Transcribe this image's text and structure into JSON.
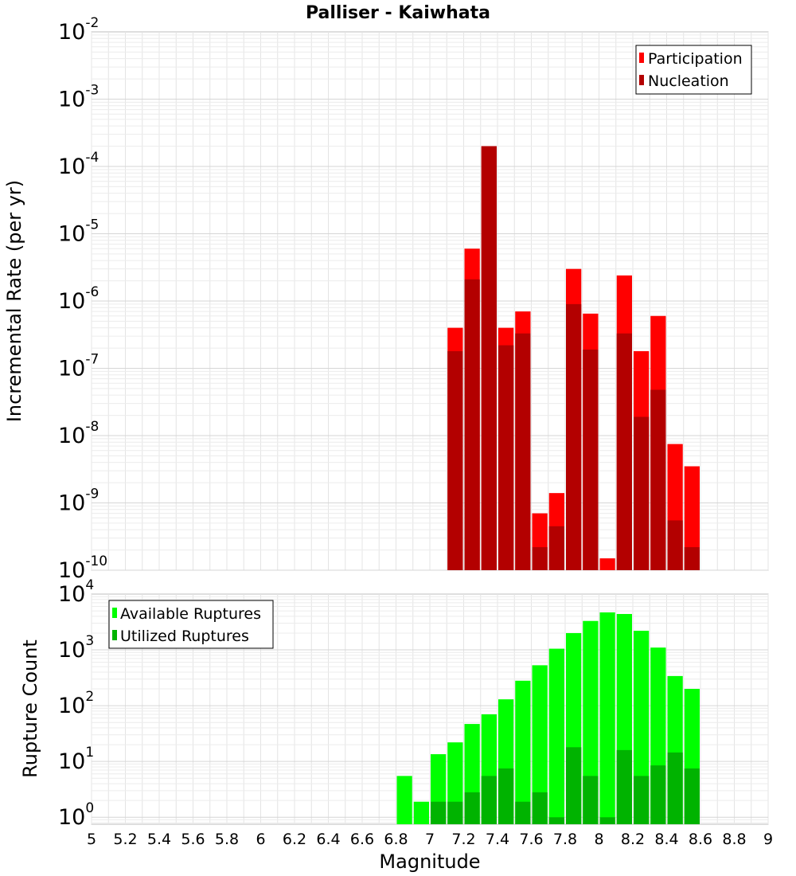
{
  "title": "Palliser - Kaiwhata",
  "colors": {
    "participation": "#ff0000",
    "nucleation": "#b30000",
    "available": "#00ff00",
    "utilized": "#00b300",
    "grid": "#e4e4e4",
    "frame": "#bdbdbd"
  },
  "chart_data": [
    {
      "type": "bar",
      "title": "Palliser - Kaiwhata",
      "xlabel": "",
      "ylabel": "Incremental Rate (per yr)",
      "xlim": [
        5,
        9
      ],
      "ylim": [
        1e-10,
        0.01
      ],
      "yscale": "log",
      "ytick_exponents": [
        "-2",
        "-3",
        "-4",
        "-5",
        "-6",
        "-7",
        "-8",
        "-9",
        "-10"
      ],
      "grid": true,
      "legend_position": "top-right",
      "bar_width": 0.1,
      "series": [
        {
          "name": "Participation",
          "color_key": "participation",
          "points": [
            {
              "x": 7.15,
              "y": 4e-07
            },
            {
              "x": 7.25,
              "y": 6e-06
            },
            {
              "x": 7.35,
              "y": 0.0002
            },
            {
              "x": 7.45,
              "y": 4e-07
            },
            {
              "x": 7.55,
              "y": 7e-07
            },
            {
              "x": 7.65,
              "y": 7e-10
            },
            {
              "x": 7.75,
              "y": 1.4e-09
            },
            {
              "x": 7.85,
              "y": 3e-06
            },
            {
              "x": 7.95,
              "y": 6.5e-07
            },
            {
              "x": 8.05,
              "y": 1.5e-10
            },
            {
              "x": 8.15,
              "y": 2.4e-06
            },
            {
              "x": 8.25,
              "y": 1.8e-07
            },
            {
              "x": 8.35,
              "y": 6e-07
            },
            {
              "x": 8.45,
              "y": 7.5e-09
            },
            {
              "x": 8.55,
              "y": 3.5e-09
            }
          ]
        },
        {
          "name": "Nucleation",
          "color_key": "nucleation",
          "points": [
            {
              "x": 7.15,
              "y": 1.8e-07
            },
            {
              "x": 7.25,
              "y": 2.1e-06
            },
            {
              "x": 7.35,
              "y": 0.0002
            },
            {
              "x": 7.45,
              "y": 2.2e-07
            },
            {
              "x": 7.55,
              "y": 3.3e-07
            },
            {
              "x": 7.65,
              "y": 2.2e-10
            },
            {
              "x": 7.75,
              "y": 4.5e-10
            },
            {
              "x": 7.85,
              "y": 9e-07
            },
            {
              "x": 7.95,
              "y": 1.9e-07
            },
            {
              "x": 8.15,
              "y": 3.3e-07
            },
            {
              "x": 8.25,
              "y": 1.9e-08
            },
            {
              "x": 8.35,
              "y": 4.8e-08
            },
            {
              "x": 8.45,
              "y": 5.5e-10
            },
            {
              "x": 8.55,
              "y": 2.2e-10
            }
          ]
        }
      ]
    },
    {
      "type": "bar",
      "title": "",
      "xlabel": "Magnitude",
      "ylabel": "Rupture Count",
      "xlim": [
        5,
        9
      ],
      "ylim": [
        0.75,
        10000
      ],
      "yscale": "log",
      "ytick_exponents": [
        "0",
        "1",
        "2",
        "3",
        "4"
      ],
      "xticks": [
        "5",
        "5.2",
        "5.4",
        "5.6",
        "5.8",
        "6",
        "6.2",
        "6.4",
        "6.6",
        "6.8",
        "7",
        "7.2",
        "7.4",
        "7.6",
        "7.8",
        "8",
        "8.2",
        "8.4",
        "8.6",
        "8.8",
        "9"
      ],
      "grid": true,
      "legend_position": "top-left",
      "bar_width": 0.1,
      "series": [
        {
          "name": "Available Ruptures",
          "color_key": "available",
          "points": [
            {
              "x": 6.85,
              "y": 5.5
            },
            {
              "x": 6.95,
              "y": 1.9
            },
            {
              "x": 7.05,
              "y": 13.5
            },
            {
              "x": 7.15,
              "y": 22
            },
            {
              "x": 7.25,
              "y": 47
            },
            {
              "x": 7.35,
              "y": 70
            },
            {
              "x": 7.45,
              "y": 130
            },
            {
              "x": 7.55,
              "y": 280
            },
            {
              "x": 7.65,
              "y": 530
            },
            {
              "x": 7.75,
              "y": 1050
            },
            {
              "x": 7.85,
              "y": 2000
            },
            {
              "x": 7.95,
              "y": 3300
            },
            {
              "x": 8.05,
              "y": 4700
            },
            {
              "x": 8.15,
              "y": 4400
            },
            {
              "x": 8.25,
              "y": 2200
            },
            {
              "x": 8.35,
              "y": 1100
            },
            {
              "x": 8.45,
              "y": 340
            },
            {
              "x": 8.55,
              "y": 200
            }
          ]
        },
        {
          "name": "Utilized Ruptures",
          "color_key": "utilized",
          "points": [
            {
              "x": 7.05,
              "y": 1.9
            },
            {
              "x": 7.15,
              "y": 1.9
            },
            {
              "x": 7.25,
              "y": 2.8
            },
            {
              "x": 7.35,
              "y": 5.5
            },
            {
              "x": 7.45,
              "y": 7.5
            },
            {
              "x": 7.55,
              "y": 1.9
            },
            {
              "x": 7.65,
              "y": 2.8
            },
            {
              "x": 7.75,
              "y": 1.0
            },
            {
              "x": 7.85,
              "y": 18
            },
            {
              "x": 7.95,
              "y": 5.5
            },
            {
              "x": 8.05,
              "y": 1.0
            },
            {
              "x": 8.15,
              "y": 16
            },
            {
              "x": 8.25,
              "y": 5.5
            },
            {
              "x": 8.35,
              "y": 8.5
            },
            {
              "x": 8.45,
              "y": 14.5
            },
            {
              "x": 8.55,
              "y": 7.5
            }
          ]
        }
      ]
    }
  ]
}
